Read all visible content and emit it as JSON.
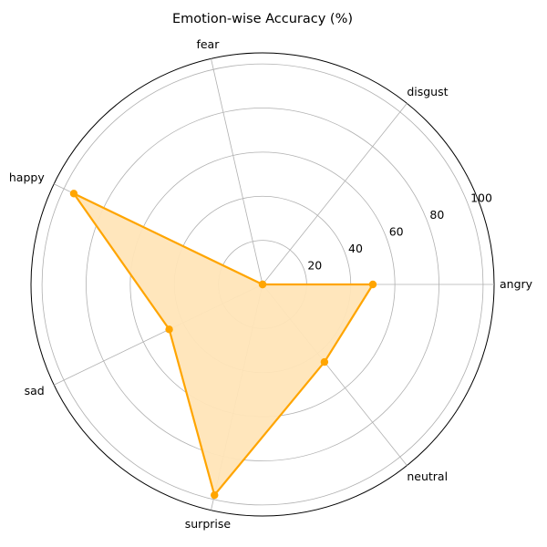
{
  "chart_data": {
    "type": "radar",
    "title": "Emotion-wise Accuracy (%)",
    "categories": [
      "angry",
      "disgust",
      "fear",
      "happy",
      "sad",
      "surprise",
      "neutral"
    ],
    "values": [
      50,
      0,
      0,
      95,
      47,
      98,
      45
    ],
    "rlim": [
      0,
      105
    ],
    "rticks": [
      20,
      40,
      60,
      80,
      100
    ],
    "grid": true,
    "fill": true,
    "colors": {
      "line": "#ffa500",
      "fill": "#ffe5b8",
      "grid": "#b0b0b0",
      "frame": "#000000"
    }
  }
}
